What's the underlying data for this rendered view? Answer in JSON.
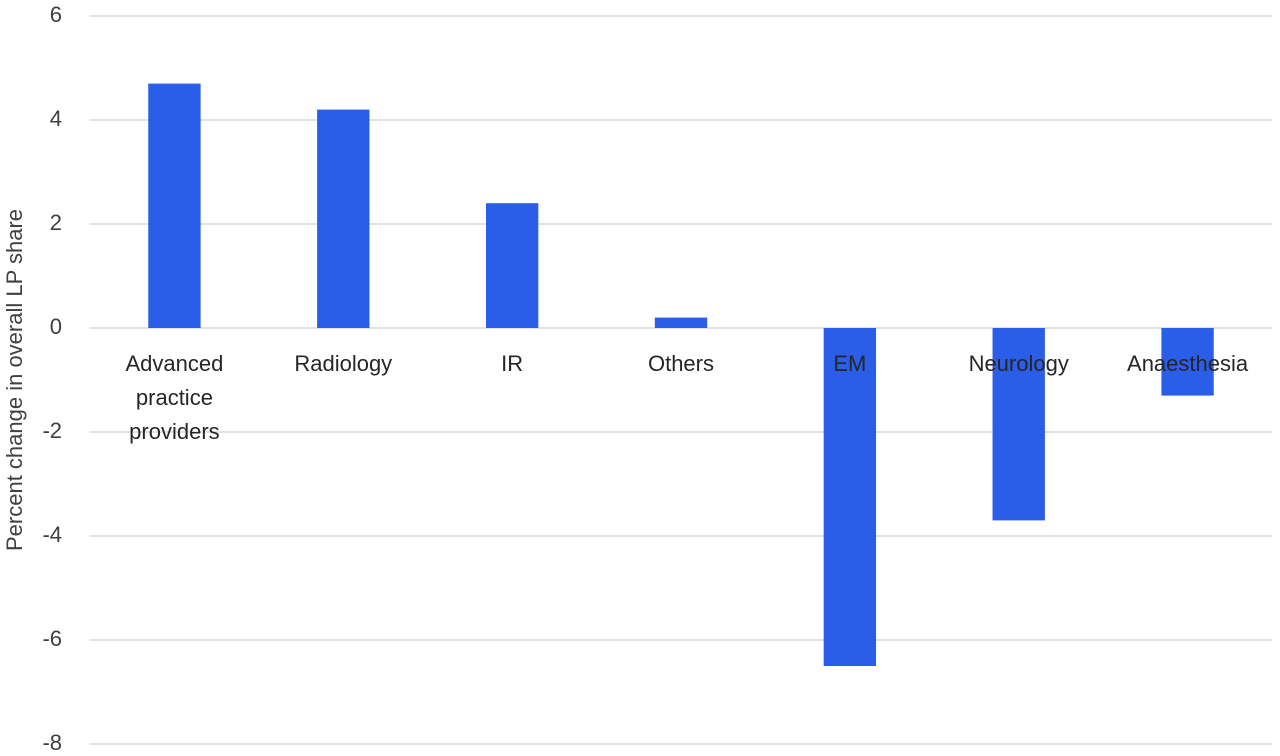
{
  "chart_data": {
    "type": "bar",
    "y_label": "Percent change in overall LP share",
    "categories": [
      "Advanced practice providers",
      "Radiology",
      "IR",
      "Others",
      "EM",
      "Neurology",
      "Anaesthesia"
    ],
    "values": [
      4.7,
      4.2,
      2.4,
      0.2,
      -6.5,
      -3.7,
      -1.3
    ],
    "color": "#2a5de8",
    "ylim": [
      -8,
      6
    ],
    "yticks": [
      -8,
      -6,
      -4,
      -2,
      0,
      2,
      4,
      6
    ],
    "grid": true
  }
}
